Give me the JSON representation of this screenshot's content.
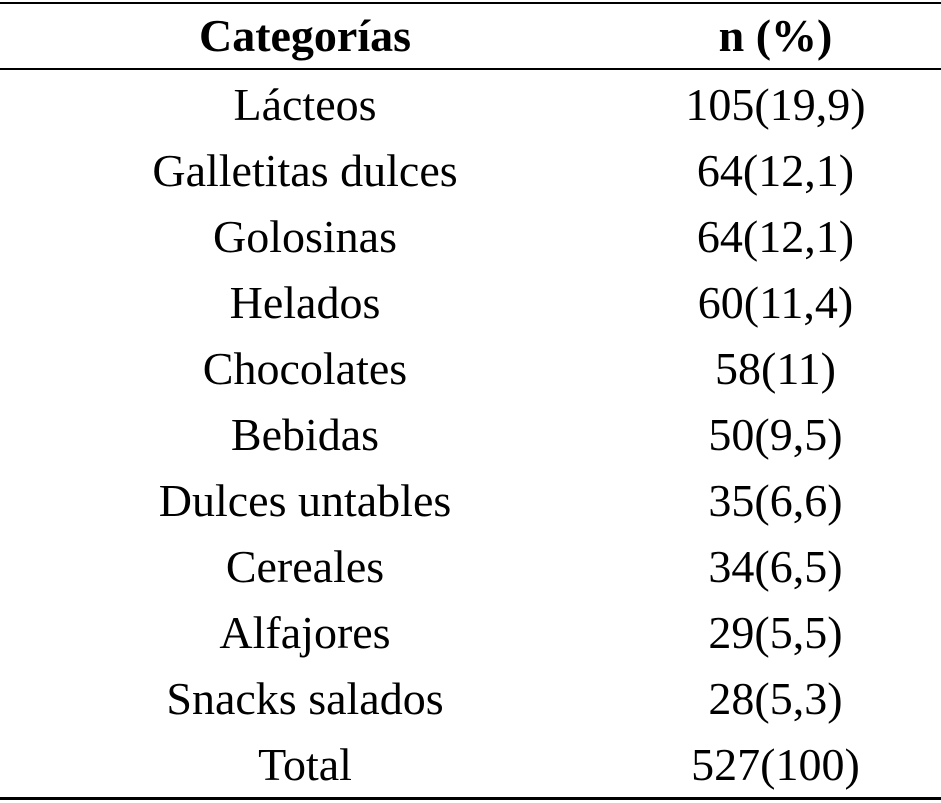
{
  "table": {
    "headers": {
      "category": "Categorías",
      "count": "n (%)"
    },
    "rows": [
      {
        "category": "Lácteos",
        "value": "105(19,9)"
      },
      {
        "category": "Galletitas dulces",
        "value": "64(12,1)"
      },
      {
        "category": "Golosinas",
        "value": "64(12,1)"
      },
      {
        "category": "Helados",
        "value": "60(11,4)"
      },
      {
        "category": "Chocolates",
        "value": "58(11)"
      },
      {
        "category": "Bebidas",
        "value": "50(9,5)"
      },
      {
        "category": "Dulces untables",
        "value": "35(6,6)"
      },
      {
        "category": "Cereales",
        "value": "34(6,5)"
      },
      {
        "category": "Alfajores",
        "value": "29(5,5)"
      },
      {
        "category": "Snacks salados",
        "value": "28(5,3)"
      },
      {
        "category": "Total",
        "value": "527(100)"
      }
    ]
  }
}
